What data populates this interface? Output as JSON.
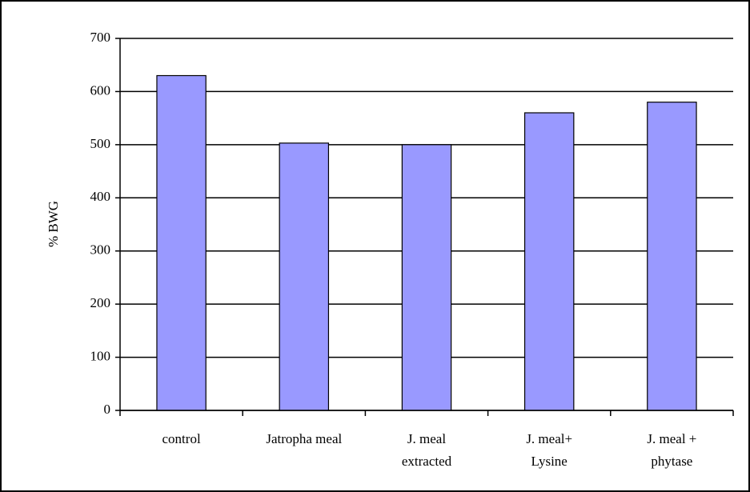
{
  "chart_data": {
    "type": "bar",
    "y_label": "% BWG",
    "categories": [
      "control",
      "Jatropha meal",
      "J. meal\nextracted",
      "J. meal+\nLysine",
      "J. meal +\nphytase"
    ],
    "values": [
      630,
      503,
      500,
      560,
      580
    ],
    "color": "#9999ff",
    "ylim": [
      0,
      700
    ],
    "yticks": [
      0,
      100,
      200,
      300,
      400,
      500,
      600,
      700
    ],
    "grid": true
  }
}
